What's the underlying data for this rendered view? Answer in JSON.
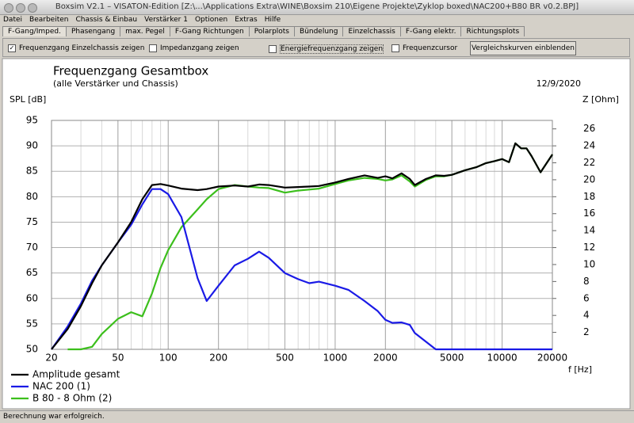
{
  "window": {
    "title": "Boxsim V2.1 – VISATON-Edition [Z:\\...\\Applications Extra\\WINE\\Boxsim 210\\Eigene Projekte\\Zyklop boxed\\NAC200+B80 BR v0.2.BPJ]"
  },
  "menu": [
    "Datei",
    "Bearbeiten",
    "Chassis & Einbau",
    "Verstärker 1",
    "Optionen",
    "Extras",
    "Hilfe"
  ],
  "tabs": [
    "F-Gang/Imped.",
    "Phasengang",
    "max. Pegel",
    "F-Gang Richtungen",
    "Polarplots",
    "Bündelung",
    "Einzelchassis",
    "F-Gang elektr.",
    "Richtungsplots"
  ],
  "options": [
    {
      "label": "Frequenzgang Einzelchassis zeigen",
      "checked": true
    },
    {
      "label": "Impedanzgang zeigen",
      "checked": false
    },
    {
      "label": "Energiefrequenzgang zeigen",
      "checked": false
    },
    {
      "label": "Frequenzcursor",
      "checked": false
    }
  ],
  "button": "Vergleichskurven einblenden",
  "chart_data": {
    "type": "line",
    "title": "Frequenzgang Gesamtbox",
    "subtitle": "(alle Verstärker und Chassis)",
    "date": "12/9/2020",
    "y_label": "SPL [dB]",
    "y2_label": "Z [Ohm]",
    "x_label": "f [Hz]",
    "x_log": true,
    "grid": true,
    "xlim": [
      20,
      20000
    ],
    "xticks": [
      20,
      50,
      100,
      200,
      500,
      1000,
      2000,
      5000,
      10000,
      20000
    ],
    "ylim": [
      50,
      95
    ],
    "yticks": [
      50,
      55,
      60,
      65,
      70,
      75,
      80,
      85,
      90,
      95
    ],
    "y2lim": [
      0,
      27
    ],
    "y2ticks": [
      2,
      4,
      6,
      8,
      10,
      12,
      14,
      16,
      18,
      20,
      22,
      24,
      26
    ],
    "x": [
      20,
      25,
      30,
      35,
      40,
      50,
      60,
      70,
      80,
      90,
      100,
      120,
      150,
      170,
      200,
      250,
      300,
      350,
      400,
      500,
      600,
      700,
      800,
      1000,
      1200,
      1500,
      1800,
      2000,
      2200,
      2500,
      2800,
      3000,
      3500,
      4000,
      4500,
      5000,
      6000,
      7000,
      8000,
      9000,
      10000,
      11000,
      12000,
      13000,
      14000,
      15000,
      17000,
      20000
    ],
    "series": [
      {
        "name": "Amplitude gesamt",
        "color": "#000000",
        "values": [
          50,
          54,
          58.5,
          63,
          66.5,
          71,
          75,
          79.5,
          82.3,
          82.5,
          82.2,
          81.6,
          81.3,
          81.5,
          82,
          82.2,
          82,
          82.4,
          82.3,
          81.8,
          81.9,
          82,
          82.1,
          82.8,
          83.5,
          84.2,
          83.7,
          84,
          83.6,
          84.6,
          83.5,
          82.3,
          83.5,
          84.2,
          84.1,
          84.3,
          85.2,
          85.8,
          86.6,
          87,
          87.4,
          86.8,
          90.5,
          89.5,
          89.5,
          88,
          84.8,
          88.3
        ]
      },
      {
        "name": "NAC 200 (1)",
        "color": "#1a1ae6",
        "values": [
          50,
          54.5,
          59,
          63.5,
          66.5,
          71,
          74.5,
          78.5,
          81.5,
          81.5,
          80.5,
          76,
          64,
          59.5,
          62.5,
          66.5,
          67.8,
          69.2,
          68,
          65,
          63.8,
          63,
          63.3,
          62.5,
          61.7,
          59.5,
          57.5,
          55.8,
          55.2,
          55.3,
          54.8,
          53.2,
          51.5,
          50,
          50,
          50,
          50,
          50,
          50,
          50,
          50,
          50,
          50,
          50,
          50,
          50,
          50,
          50
        ]
      },
      {
        "name": "B 80 - 8 Ohm (2)",
        "color": "#3cbf1c",
        "values": [
          null,
          50,
          50,
          50.5,
          53,
          56,
          57.3,
          56.5,
          61,
          66,
          69.5,
          74,
          77.5,
          79.5,
          81.5,
          82.3,
          82,
          81.8,
          81.7,
          80.8,
          81.2,
          81.4,
          81.6,
          82.5,
          83.2,
          83.7,
          83.5,
          83.2,
          83.4,
          84.2,
          83,
          82,
          83.3,
          84,
          84,
          84.3,
          85.2,
          85.8,
          86.6,
          87,
          87.4,
          86.8,
          90.5,
          89.5,
          89.5,
          88,
          84.8,
          88.3
        ]
      }
    ]
  },
  "status": "Berechnung war erfolgreich."
}
